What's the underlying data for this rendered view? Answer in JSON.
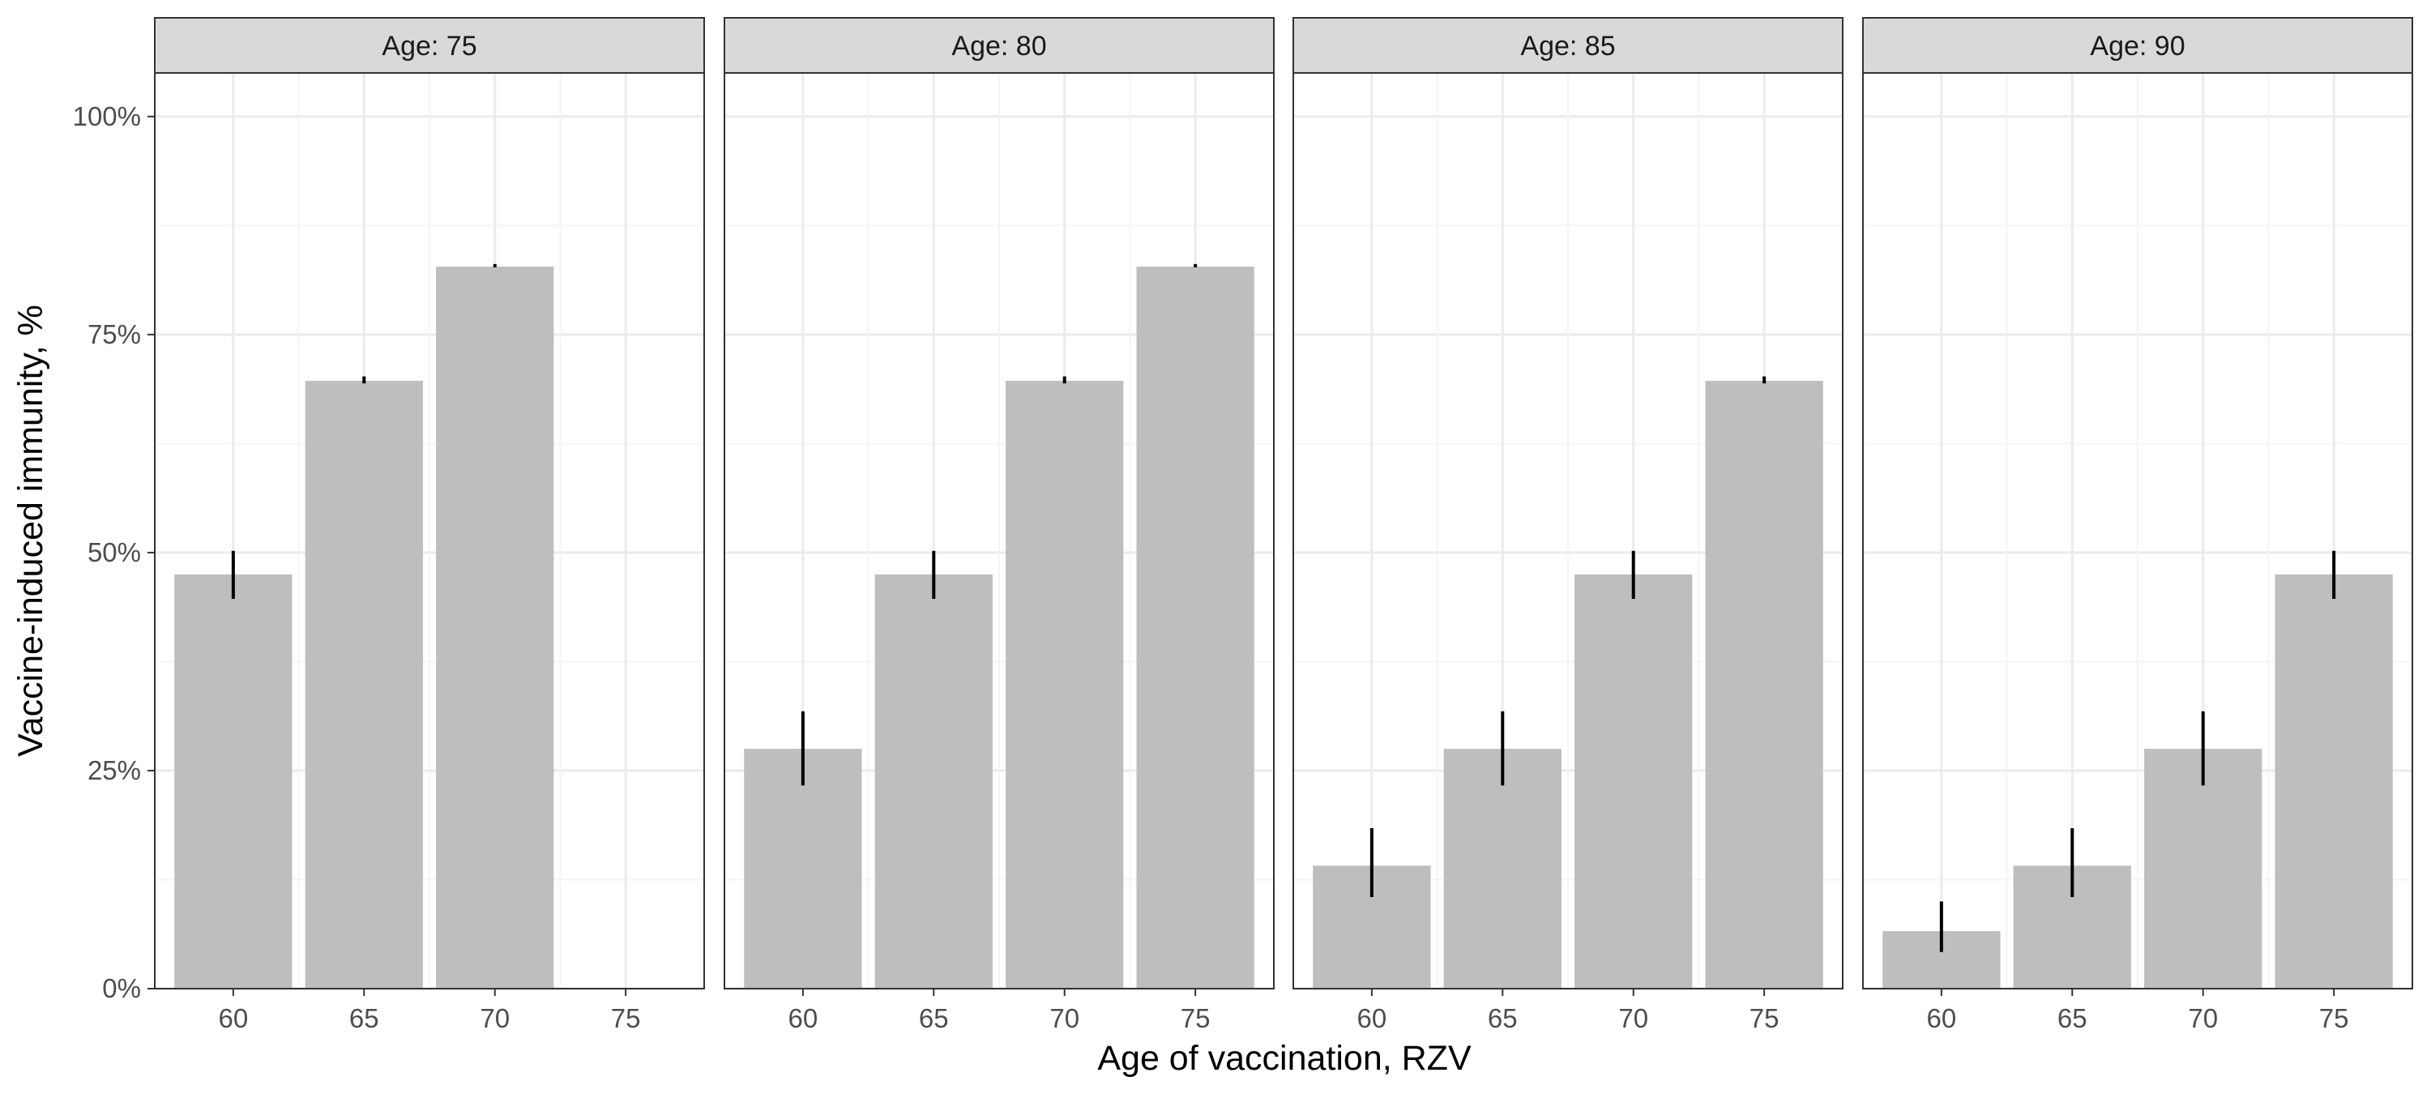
{
  "chart_data": {
    "type": "bar",
    "facet_label": "Age",
    "xlabel": "Age of vaccination, RZV",
    "ylabel": "Vaccine-induced immunity, %",
    "categories": [
      "60",
      "65",
      "70",
      "75"
    ],
    "y_ticks": [
      "0%",
      "25%",
      "50%",
      "75%",
      "100%"
    ],
    "ylim": [
      0,
      1.05
    ],
    "grid": true,
    "colors": {
      "bar": "#bebebe",
      "errorbar": "#000000",
      "strip_fill": "#d9d9d9",
      "grid_major": "#ebebeb",
      "grid_minor": "#f4f4f4",
      "panel_border": "#333333"
    },
    "facets": [
      {
        "title": "Age: 75",
        "values": [
          0.475,
          0.697,
          0.828,
          null
        ],
        "error_low": [
          0.447,
          0.694,
          0.828,
          null
        ],
        "error_high": [
          0.502,
          0.702,
          0.83,
          null
        ]
      },
      {
        "title": "Age: 80",
        "values": [
          0.275,
          0.475,
          0.697,
          0.828
        ],
        "error_low": [
          0.233,
          0.447,
          0.694,
          0.828
        ],
        "error_high": [
          0.318,
          0.502,
          0.702,
          0.83
        ]
      },
      {
        "title": "Age: 85",
        "values": [
          0.141,
          0.275,
          0.475,
          0.697
        ],
        "error_low": [
          0.105,
          0.233,
          0.447,
          0.694
        ],
        "error_high": [
          0.184,
          0.318,
          0.502,
          0.702
        ]
      },
      {
        "title": "Age: 90",
        "values": [
          0.066,
          0.141,
          0.275,
          0.475
        ],
        "error_low": [
          0.042,
          0.105,
          0.233,
          0.447
        ],
        "error_high": [
          0.1,
          0.184,
          0.318,
          0.502
        ]
      }
    ]
  }
}
